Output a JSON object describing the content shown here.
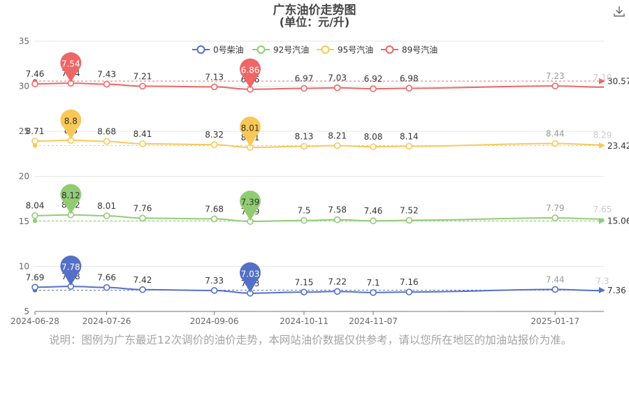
{
  "download_icon": "download-icon",
  "note": "说明：图例为广东最近12次调价的油价走势，本网站油价数据仅供参考，请以您所在地区的加油站报价为准。",
  "chart_data": {
    "type": "line",
    "title": "广东油价走势图",
    "subtitle": "(单位：元/升)",
    "xlabel": "",
    "ylabel": "",
    "ylim": [
      5,
      35
    ],
    "yticks": [
      5,
      10,
      15,
      20,
      25,
      30,
      35
    ],
    "xtick_labels": [
      "2024-06-28",
      "2024-07-26",
      "2024-09-06",
      "2024-10-11",
      "2024-11-07",
      "2025-01-17"
    ],
    "x": [
      "2024-06-28",
      "2024-07-12",
      "2024-07-26",
      "2024-08-09",
      "2024-09-06",
      "2024-09-20",
      "2024-10-11",
      "2024-10-24",
      "2024-11-07",
      "2024-11-21",
      "2025-01-17",
      "2025-02-05"
    ],
    "grid": true,
    "legend_position": "top-center",
    "series": [
      {
        "name": "0号柴油",
        "color": "#5470c6",
        "display_offset": 0,
        "labels": [
          "7.69",
          "7.78",
          "7.66",
          "7.42",
          "7.33",
          "7.03",
          "7.15",
          "7.22",
          "7.1",
          "7.16",
          "7.44",
          "7.3"
        ],
        "values": [
          7.69,
          7.78,
          7.66,
          7.42,
          7.33,
          7.03,
          7.15,
          7.22,
          7.1,
          7.16,
          7.44,
          7.3
        ],
        "max": {
          "label": "7.78",
          "index": 1
        },
        "min": {
          "label": "7.03",
          "index": 5
        },
        "average": "7.36"
      },
      {
        "name": "92号汽油",
        "color": "#91cc75",
        "display_offset": 7.6,
        "labels": [
          "8.04",
          "8.12",
          "8.01",
          "7.76",
          "7.68",
          "7.39",
          "7.5",
          "7.58",
          "7.46",
          "7.52",
          "7.79",
          "7.65"
        ],
        "values": [
          8.04,
          8.12,
          8.01,
          7.76,
          7.68,
          7.39,
          7.5,
          7.58,
          7.46,
          7.52,
          7.79,
          7.65
        ],
        "max": {
          "label": "8.12",
          "index": 1
        },
        "min": {
          "label": "7.39",
          "index": 5
        },
        "average": "15.06"
      },
      {
        "name": "95号汽油",
        "color": "#fac858",
        "display_offset": 15.2,
        "labels": [
          "8.71",
          "8.8",
          "8.68",
          "8.41",
          "8.32",
          "8.01",
          "8.13",
          "8.21",
          "8.08",
          "8.14",
          "8.44",
          "8.29"
        ],
        "values": [
          8.71,
          8.8,
          8.68,
          8.41,
          8.32,
          8.01,
          8.13,
          8.21,
          8.08,
          8.14,
          8.44,
          8.29
        ],
        "max": {
          "label": "8.8",
          "index": 1
        },
        "min": {
          "label": "8.01",
          "index": 5
        },
        "average": "23.42"
      },
      {
        "name": "89号汽油",
        "color": "#ee6666",
        "display_offset": 22.8,
        "labels": [
          "7.46",
          "7.54",
          "7.43",
          "7.21",
          "7.13",
          "6.86",
          "6.97",
          "7.03",
          "6.92",
          "6.98",
          "7.23",
          "7.10"
        ],
        "values": [
          7.46,
          7.54,
          7.43,
          7.21,
          7.13,
          6.86,
          6.97,
          7.03,
          6.92,
          6.98,
          7.23,
          7.1
        ],
        "max": {
          "label": "7.54",
          "index": 1
        },
        "min": {
          "label": "6.86",
          "index": 5
        },
        "average": "30.57"
      }
    ]
  }
}
